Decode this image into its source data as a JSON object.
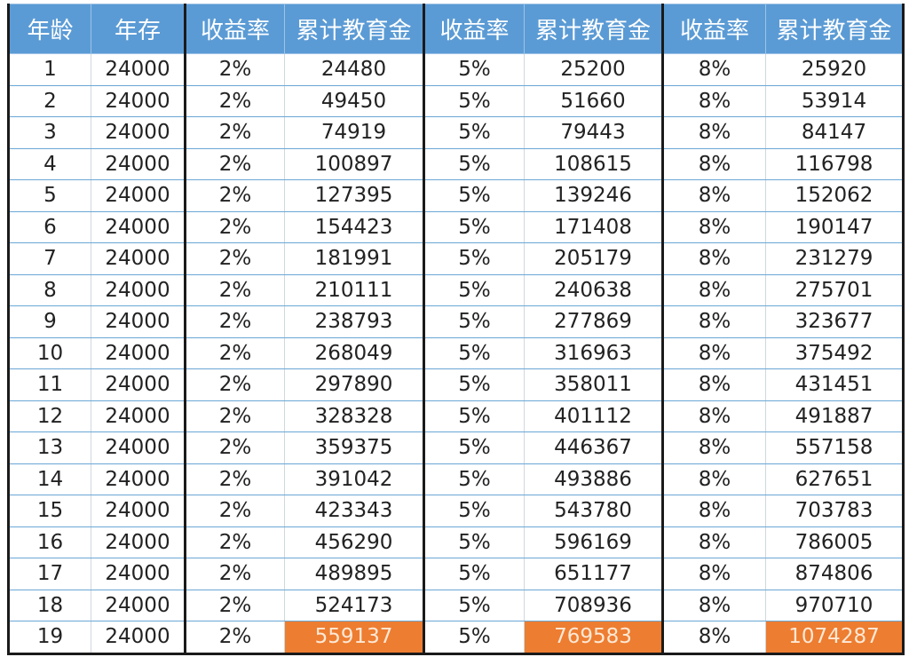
{
  "headers": [
    "年龄",
    "年存",
    "收益率",
    "累计教育金",
    "收益率",
    "累计教育金",
    "收益率",
    "累计教育金"
  ],
  "rows": [
    [
      "1",
      "24000",
      "2%",
      "24480",
      "5%",
      "25200",
      "8%",
      "25920"
    ],
    [
      "2",
      "24000",
      "2%",
      "49450",
      "5%",
      "51660",
      "8%",
      "53914"
    ],
    [
      "3",
      "24000",
      "2%",
      "74919",
      "5%",
      "79443",
      "8%",
      "84147"
    ],
    [
      "4",
      "24000",
      "2%",
      "100897",
      "5%",
      "108615",
      "8%",
      "116798"
    ],
    [
      "5",
      "24000",
      "2%",
      "127395",
      "5%",
      "139246",
      "8%",
      "152062"
    ],
    [
      "6",
      "24000",
      "2%",
      "154423",
      "5%",
      "171408",
      "8%",
      "190147"
    ],
    [
      "7",
      "24000",
      "2%",
      "181991",
      "5%",
      "205179",
      "8%",
      "231279"
    ],
    [
      "8",
      "24000",
      "2%",
      "210111",
      "5%",
      "240638",
      "8%",
      "275701"
    ],
    [
      "9",
      "24000",
      "2%",
      "238793",
      "5%",
      "277869",
      "8%",
      "323677"
    ],
    [
      "10",
      "24000",
      "2%",
      "268049",
      "5%",
      "316963",
      "8%",
      "375492"
    ],
    [
      "11",
      "24000",
      "2%",
      "297890",
      "5%",
      "358011",
      "8%",
      "431451"
    ],
    [
      "12",
      "24000",
      "2%",
      "328328",
      "5%",
      "401112",
      "8%",
      "491887"
    ],
    [
      "13",
      "24000",
      "2%",
      "359375",
      "5%",
      "446367",
      "8%",
      "557158"
    ],
    [
      "14",
      "24000",
      "2%",
      "391042",
      "5%",
      "493886",
      "8%",
      "627651"
    ],
    [
      "15",
      "24000",
      "2%",
      "423343",
      "5%",
      "543780",
      "8%",
      "703783"
    ],
    [
      "16",
      "24000",
      "2%",
      "456290",
      "5%",
      "596169",
      "8%",
      "786005"
    ],
    [
      "17",
      "24000",
      "2%",
      "489895",
      "5%",
      "651177",
      "8%",
      "874806"
    ],
    [
      "18",
      "24000",
      "2%",
      "524173",
      "5%",
      "708936",
      "8%",
      "970710"
    ],
    [
      "19",
      "24000",
      "2%",
      "559137",
      "5%",
      "769583",
      "8%",
      "1074287"
    ]
  ],
  "colors": {
    "header_bg": "#5b9bd5",
    "header_text": "#ffffff",
    "highlight_bg": "#ed7d31",
    "highlight_text": "#ffe9d6"
  }
}
